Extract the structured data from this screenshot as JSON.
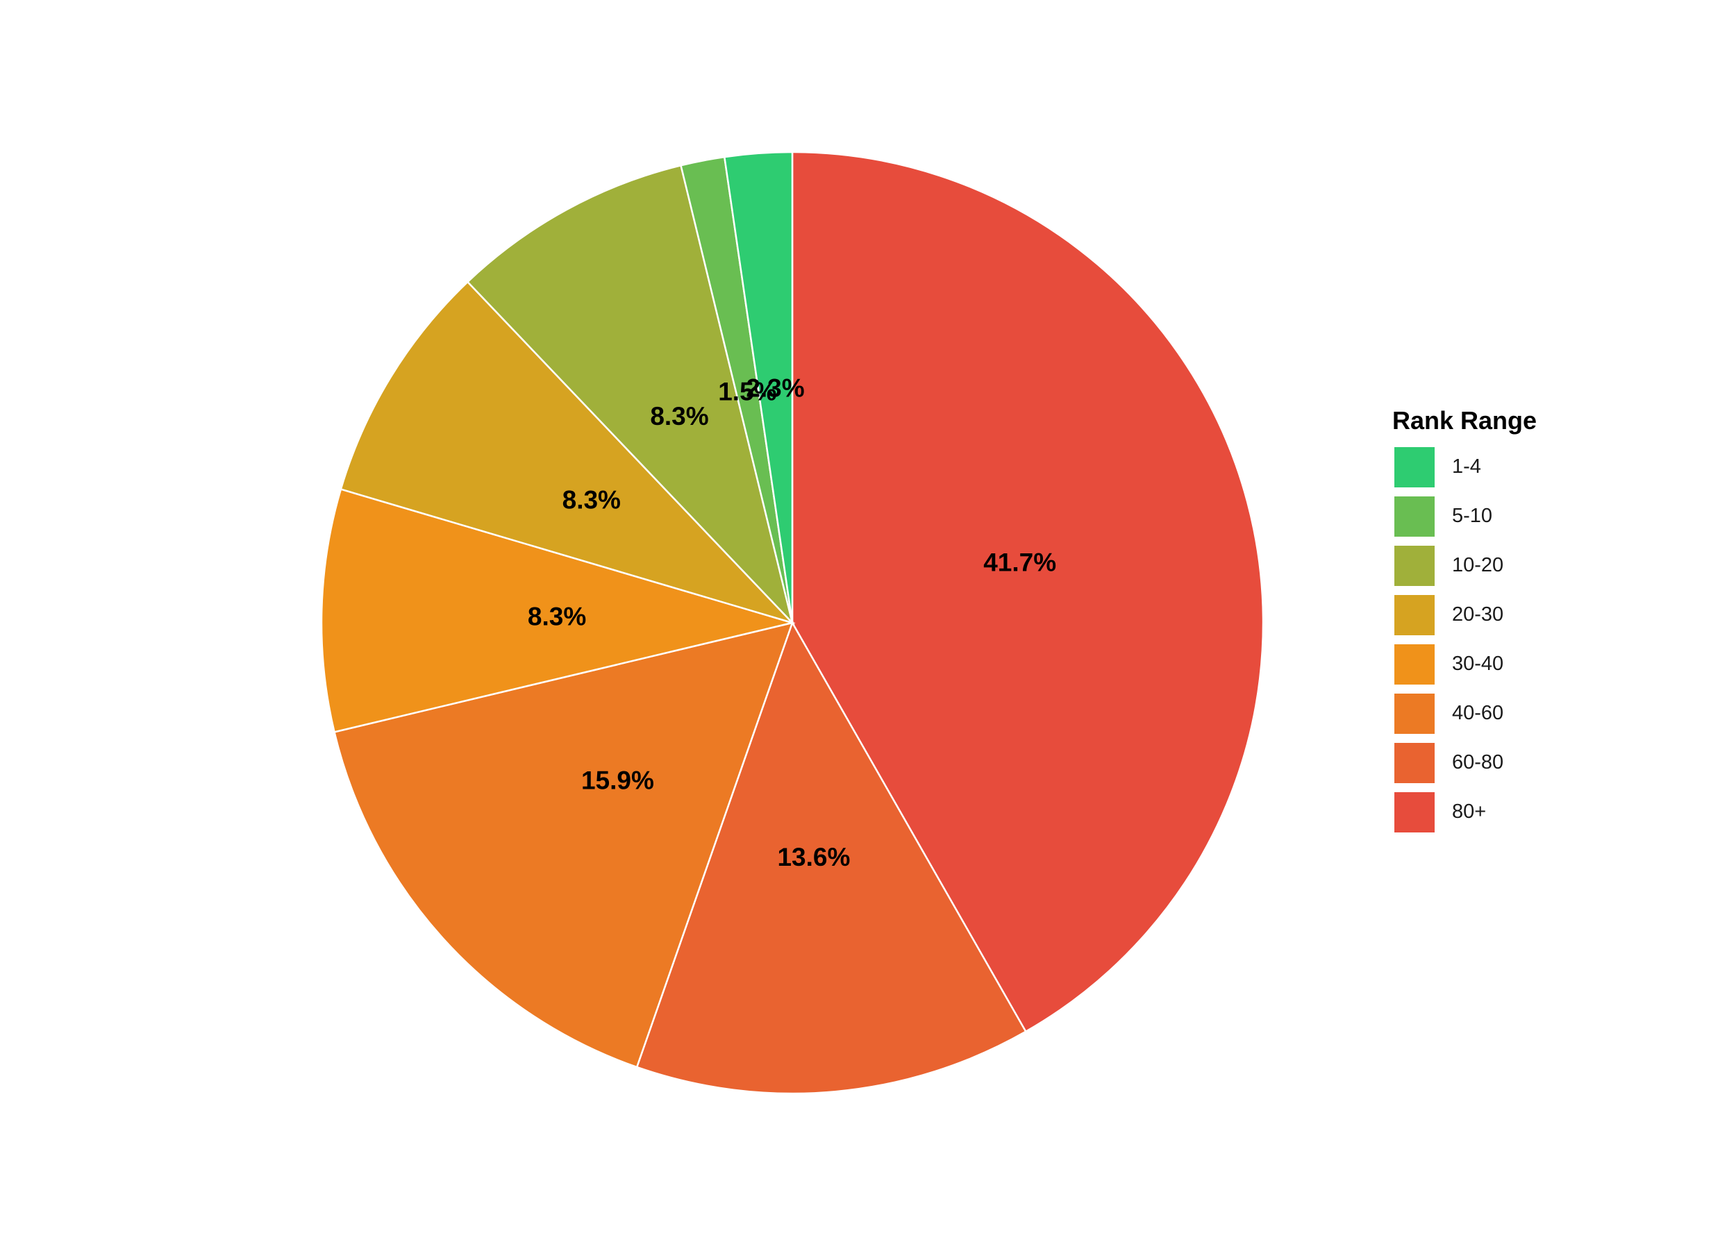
{
  "chart_data": {
    "type": "pie",
    "title": "",
    "legend_title": "Rank Range",
    "legend_position": "right",
    "start": "12 o'clock",
    "direction": "clockwise",
    "slice_border_color": "#ffffff",
    "categories": [
      "80+",
      "60-80",
      "40-60",
      "30-40",
      "20-30",
      "10-20",
      "5-10",
      "1-4"
    ],
    "values": [
      41.7,
      13.6,
      15.9,
      8.3,
      8.3,
      8.3,
      1.5,
      2.3
    ],
    "labels": [
      "41.7%",
      "13.6%",
      "15.9%",
      "8.3%",
      "8.3%",
      "8.3%",
      "1.5%",
      "2.3%"
    ],
    "colors": [
      "#E74C3C",
      "#E96330",
      "#EC7A24",
      "#F0921A",
      "#D6A321",
      "#A0B03A",
      "#69BE52",
      "#2ECC71"
    ]
  },
  "legend": {
    "title": "Rank Range",
    "items": [
      {
        "label": "1-4",
        "color": "#2ECC71"
      },
      {
        "label": "5-10",
        "color": "#69BE52"
      },
      {
        "label": "10-20",
        "color": "#A0B03A"
      },
      {
        "label": "20-30",
        "color": "#D6A321"
      },
      {
        "label": "30-40",
        "color": "#F0921A"
      },
      {
        "label": "40-60",
        "color": "#EC7A24"
      },
      {
        "label": "60-80",
        "color": "#E96330"
      },
      {
        "label": "80+",
        "color": "#E74C3C"
      }
    ]
  }
}
